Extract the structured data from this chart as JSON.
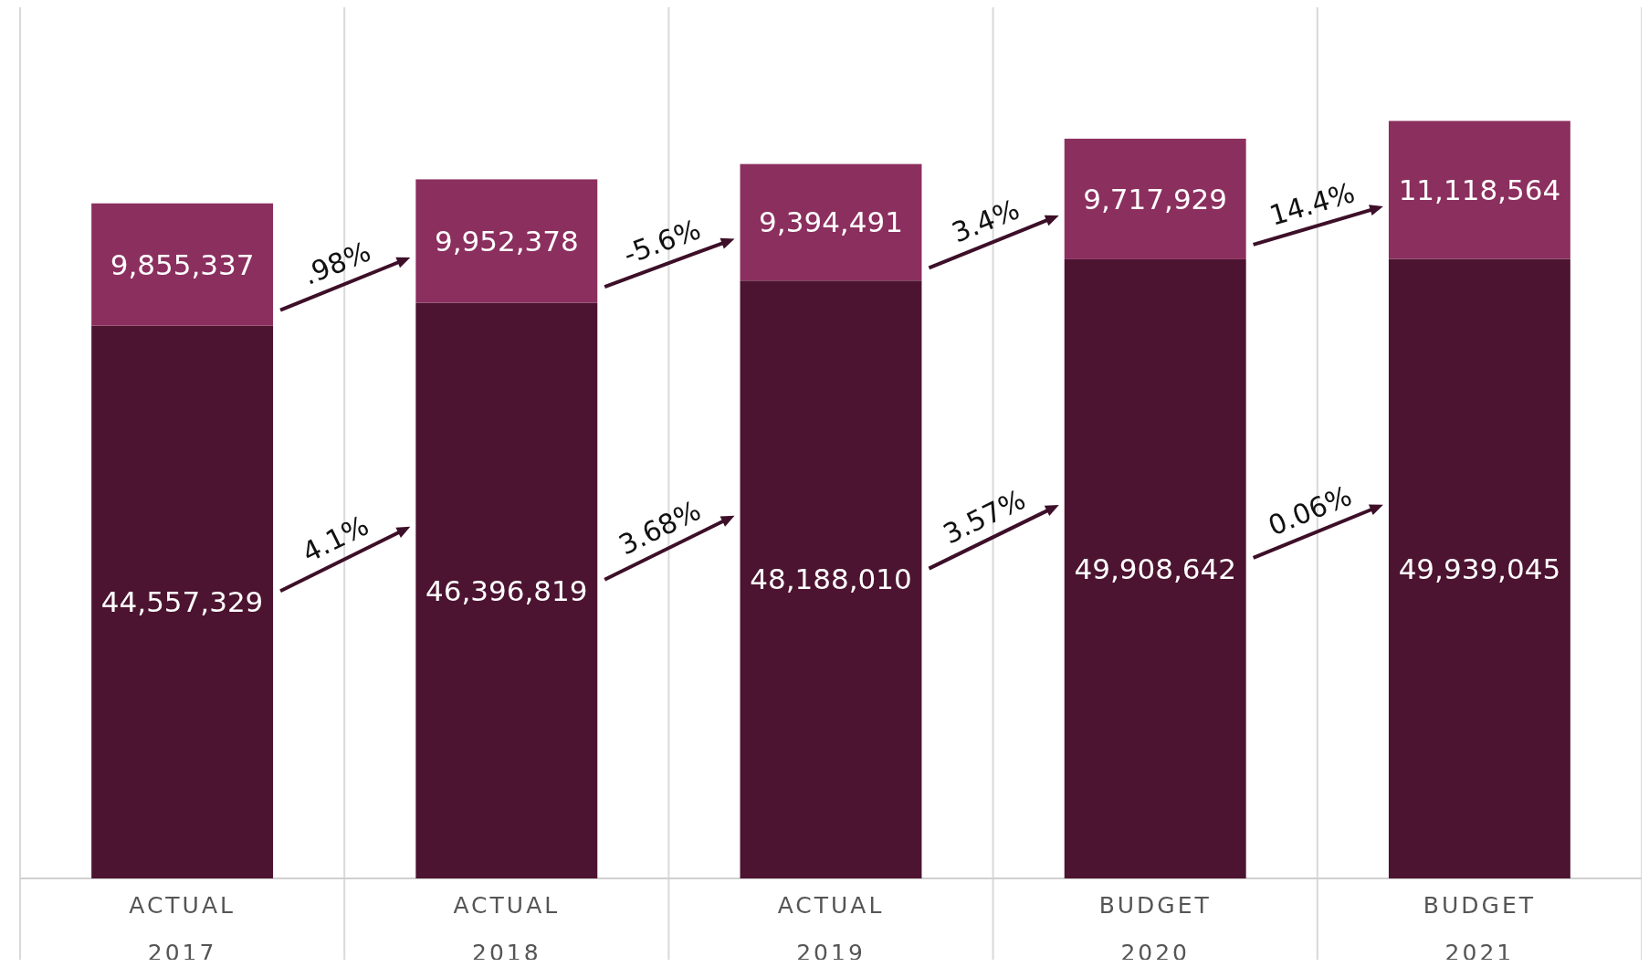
{
  "chart_data": {
    "type": "bar",
    "stacked": true,
    "grid": "x",
    "tick_labels": "x",
    "categories": [
      "ACTUAL\n2017",
      "ACTUAL\n2018",
      "ACTUAL\n2019",
      "BUDGET\n2020",
      "BUDGET\n2021"
    ],
    "series": [
      {
        "color": "#4c1430",
        "values": [
          44557329,
          46396819,
          48188010,
          49908642,
          49939045
        ],
        "value_labels": [
          "44,557,329",
          "46,396,819",
          "48,188,010",
          "49,908,642",
          "49,939,045"
        ]
      },
      {
        "color": "#8b2f5e",
        "values": [
          9855337,
          9952378,
          9394491,
          9717929,
          11118564
        ],
        "value_labels": [
          "9,855,337",
          "9,952,378",
          "9,394,491",
          "9,717,929",
          "11,118,564"
        ]
      }
    ],
    "annotations": [
      "4.1%",
      "3.68%",
      "3.57%",
      "0.06%",
      ".98%",
      "-5.6%",
      "3.4%",
      "14.4%"
    ]
  }
}
